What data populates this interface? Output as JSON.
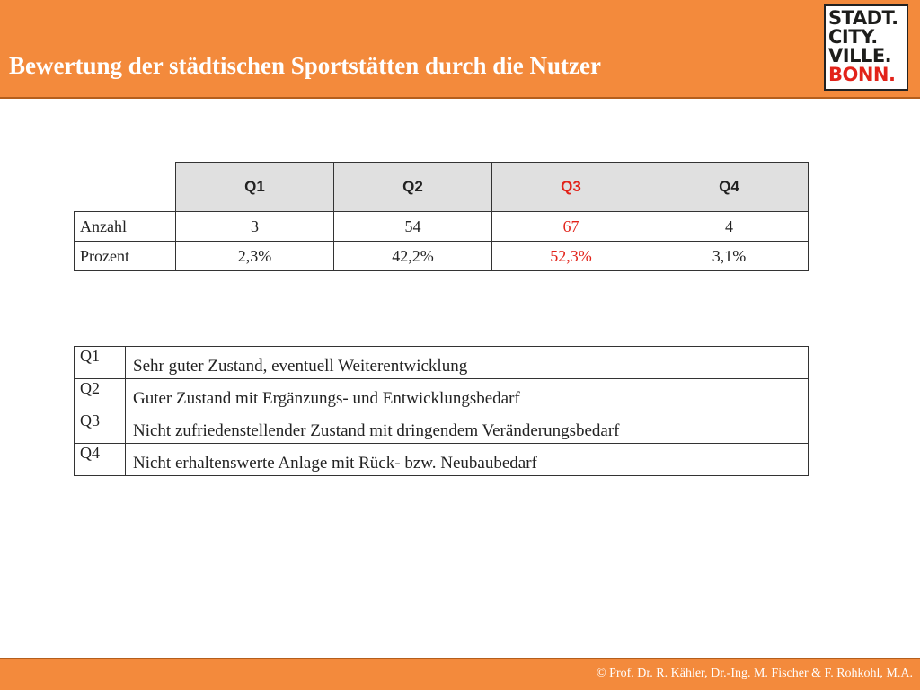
{
  "header": {
    "title": "Bewertung der städtischen Sportstätten durch die Nutzer",
    "logo_lines": [
      "STADT.",
      "CITY.",
      "VILLE.",
      "BONN."
    ]
  },
  "colors": {
    "accent_orange": "#f38a3c",
    "highlight_red": "#e2231a"
  },
  "results_table": {
    "columns": [
      "Q1",
      "Q2",
      "Q3",
      "Q4"
    ],
    "highlight_column": "Q3",
    "rows": [
      {
        "label": "Anzahl",
        "values": [
          "3",
          "54",
          "67",
          "4"
        ]
      },
      {
        "label": "Prozent",
        "values": [
          "2,3%",
          "42,2%",
          "52,3%",
          "3,1%"
        ]
      }
    ]
  },
  "legend_table": {
    "rows": [
      {
        "code": "Q1",
        "text": "Sehr guter Zustand, eventuell Weiterentwicklung"
      },
      {
        "code": "Q2",
        "text": "Guter Zustand mit Ergänzungs- und Entwicklungsbedarf"
      },
      {
        "code": "Q3",
        "text": "Nicht zufriedenstellender Zustand mit dringendem Veränderungsbedarf"
      },
      {
        "code": "Q4",
        "text": "Nicht erhaltenswerte Anlage mit Rück- bzw. Neubaubedarf"
      }
    ]
  },
  "footer": {
    "copyright": "© Prof. Dr. R. Kähler, Dr.-Ing. M. Fischer & F. Rohkohl, M.A."
  }
}
